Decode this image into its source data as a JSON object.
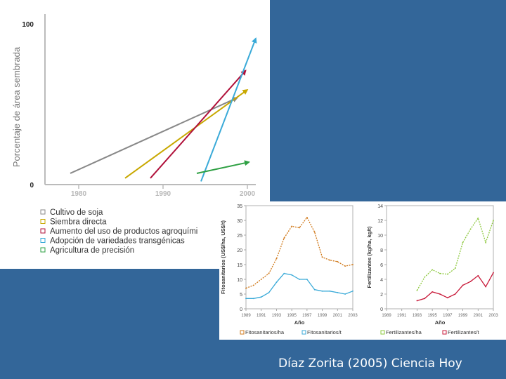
{
  "caption": "Díaz Zorita (2005) Ciencia Hoy",
  "colors": {
    "panel": "#336699"
  },
  "chart_data": [
    {
      "type": "line",
      "title": "",
      "xlabel": "",
      "ylabel": "Porcentaje de área sembrada",
      "xlim": [
        1976,
        2001
      ],
      "ylim": [
        0,
        100
      ],
      "xticks": [
        "1980",
        "1990",
        "2000"
      ],
      "yticks": [
        "0",
        "100"
      ],
      "series": [
        {
          "name": "Cultivo de soja",
          "color": "#888888",
          "points": [
            [
              1979,
              7
            ],
            [
              1998.8,
              54
            ]
          ]
        },
        {
          "name": "Siembra directa",
          "color": "#c8a800",
          "points": [
            [
              1985.5,
              4
            ],
            [
              2000,
              59
            ]
          ]
        },
        {
          "name": "Aumento del uso de productos agroquímicos",
          "color": "#b0103a",
          "points": [
            [
              1988.5,
              4
            ],
            [
              1999.8,
              71
            ]
          ]
        },
        {
          "name": "Adopción de variedades transgénicas",
          "color": "#3aaad8",
          "points": [
            [
              1994.5,
              2
            ],
            [
              2001,
              91
            ]
          ]
        },
        {
          "name": "Agricultura de precisión",
          "color": "#2ea043",
          "points": [
            [
              1994,
              7
            ],
            [
              2000.2,
              14
            ]
          ]
        }
      ],
      "legend": [
        "Cultivo de soja",
        "Siembra directa",
        "Aumento del uso de productos agroquími",
        "Adopción de variedades transgénicas",
        "Agricultura de precisión"
      ]
    },
    {
      "type": "line",
      "xlabel": "Año",
      "ylabel": "Fitosanitarios (US$/ha, US$/t)",
      "xlim": [
        1989,
        2003
      ],
      "ylim": [
        0,
        35
      ],
      "xticks": [
        "1989",
        "1991",
        "1993",
        "1995",
        "1997",
        "1999",
        "2001",
        "2003"
      ],
      "yticks": [
        "0",
        "5",
        "10",
        "15",
        "20",
        "25",
        "30",
        "35"
      ],
      "x": [
        1989,
        1990,
        1991,
        1992,
        1993,
        1994,
        1995,
        1996,
        1997,
        1998,
        1999,
        2000,
        2001,
        2002,
        2003
      ],
      "series": [
        {
          "name": "Fitosanitarios/ha",
          "color": "#d07818",
          "values": [
            7,
            8,
            10,
            12,
            17,
            24,
            28,
            27.5,
            31,
            26,
            17.5,
            16.5,
            16,
            14.5,
            15
          ]
        },
        {
          "name": "Fitosanitarios/t",
          "color": "#3aaad8",
          "values": [
            3.5,
            3.5,
            4,
            5.5,
            9,
            12,
            11.5,
            10,
            10,
            6.5,
            6,
            6,
            5.5,
            5,
            6
          ]
        }
      ],
      "legend": [
        "Fitosanitarios/ha",
        "Fitosanitarios/t"
      ]
    },
    {
      "type": "line",
      "xlabel": "Año",
      "ylabel": "Fertilizantes (kg/ha, kg/t)",
      "xlim": [
        1989,
        2003
      ],
      "ylim": [
        0,
        14
      ],
      "xticks": [
        "1989",
        "1991",
        "1993",
        "1995",
        "1997",
        "1999",
        "2001",
        "2003"
      ],
      "yticks": [
        "0",
        "2",
        "4",
        "6",
        "8",
        "10",
        "12",
        "14"
      ],
      "x": [
        1993,
        1994,
        1995,
        1996,
        1997,
        1998,
        1999,
        2000,
        2001,
        2002,
        2003
      ],
      "series": [
        {
          "name": "Fertilizantes/ha",
          "color": "#8cc83c",
          "values": [
            2.5,
            4.3,
            5.3,
            4.8,
            4.7,
            5.5,
            9,
            10.8,
            12.3,
            9,
            12
          ]
        },
        {
          "name": "Fertilizantes/t",
          "color": "#c81838",
          "values": [
            1.1,
            1.4,
            2.3,
            2,
            1.5,
            2,
            3.2,
            3.7,
            4.5,
            3,
            4.9
          ]
        }
      ],
      "legend": [
        "Fertilizantes/ha",
        "Fertilizantes/t"
      ]
    }
  ]
}
